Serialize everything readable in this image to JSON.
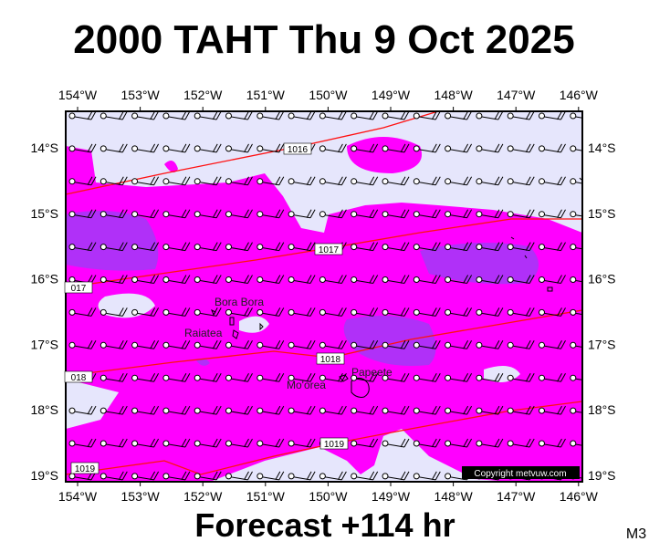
{
  "title": "2000 TAHT Thu 9 Oct 2025",
  "longitudes": [
    "154°W",
    "153°W",
    "152°W",
    "151°W",
    "150°W",
    "149°W",
    "148°W",
    "147°W",
    "146°W"
  ],
  "latitudes": [
    "14°S",
    "15°S",
    "16°S",
    "17°S",
    "18°S",
    "19°S"
  ],
  "isobar_labels": [
    "1016",
    "1017",
    "017",
    "1018",
    "018",
    "1019",
    "1019"
  ],
  "places": [
    "Bora Bora",
    "Raiatea",
    "Mo'orea",
    "Papeete"
  ],
  "copyright": "Copyright metvuw.com",
  "forecast": "Forecast +114 hr",
  "model": "M3"
}
